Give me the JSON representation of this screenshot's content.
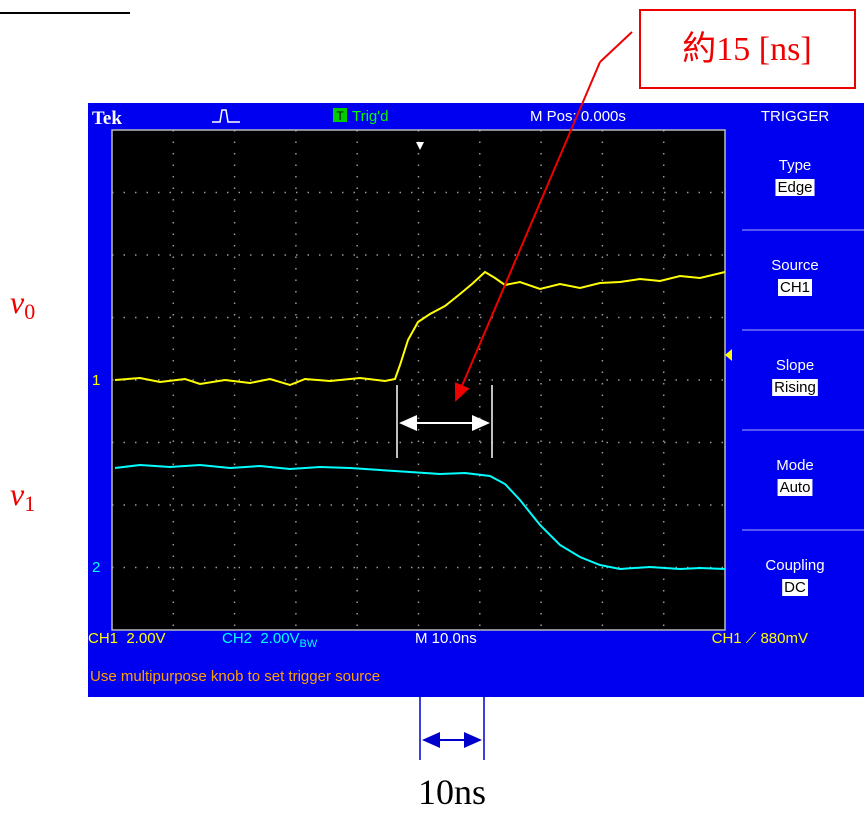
{
  "header": {
    "brand": "Tek",
    "trigger_icon": "T",
    "trigger_status": "Trig'd",
    "position": "M Pos: 0.000s"
  },
  "menu": {
    "title": "TRIGGER",
    "items": [
      {
        "label": "Type",
        "value": "Edge"
      },
      {
        "label": "Source",
        "value": "CH1"
      },
      {
        "label": "Slope",
        "value": "Rising"
      },
      {
        "label": "Mode",
        "value": "Auto"
      },
      {
        "label": "Coupling",
        "value": "DC"
      }
    ]
  },
  "markers": {
    "ch1": "1",
    "ch2": "2"
  },
  "status": {
    "ch1": "CH1  2.00V",
    "ch2": "CH2  2.00V",
    "bw": "BW",
    "timebase": "M 10.0ns",
    "trigger": "CH1 ⟋ 880mV"
  },
  "message": "Use multipurpose knob to set trigger source",
  "annotations": {
    "delay": "約15 [ns]",
    "v0": {
      "base": "v",
      "sub": "0"
    },
    "v1": {
      "base": "v",
      "sub": "1"
    },
    "scale": "10ns"
  }
}
